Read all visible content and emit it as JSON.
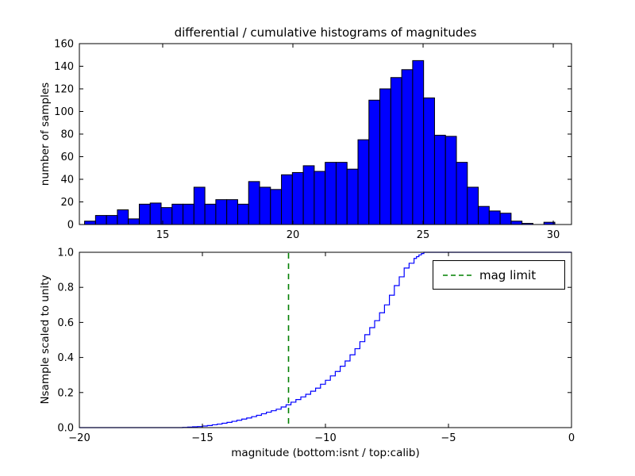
{
  "figure": {
    "background": "#ffffff"
  },
  "chart_data": [
    {
      "type": "bar",
      "title": "differential / cumulative histograms of magnitudes",
      "ylabel": "number of samples",
      "xlabel": "",
      "xlim": [
        11.8,
        30.7
      ],
      "ylim": [
        0,
        160
      ],
      "xtick_values": [
        15,
        20,
        25,
        30
      ],
      "xtick_labels": [
        "15",
        "20",
        "25",
        "30"
      ],
      "ytick_values": [
        0,
        20,
        40,
        60,
        80,
        100,
        120,
        140,
        160
      ],
      "ytick_labels": [
        "0",
        "20",
        "40",
        "60",
        "80",
        "100",
        "120",
        "140",
        "160"
      ],
      "grid": false,
      "bar_color": "#0000ff",
      "bar_edge_color": "#000000",
      "bins": {
        "start": 12.0,
        "width": 0.42
      },
      "counts": [
        3,
        8,
        8,
        13,
        5,
        18,
        19,
        15,
        18,
        18,
        33,
        18,
        22,
        22,
        18,
        38,
        33,
        31,
        44,
        46,
        52,
        47,
        55,
        55,
        49,
        75,
        110,
        120,
        130,
        137,
        145,
        112,
        79,
        78,
        55,
        33,
        16,
        12,
        10,
        3,
        1,
        0,
        2
      ]
    },
    {
      "type": "line",
      "line_style": "step",
      "ylabel": "Nsample scaled to unity",
      "xlabel": "magnitude (bottom:isnt / top:calib)",
      "xlim": [
        -20,
        0
      ],
      "ylim": [
        0.0,
        1.0
      ],
      "xtick_values": [
        -20,
        -15,
        -10,
        -5,
        0
      ],
      "xtick_labels": [
        "−20",
        "−15",
        "−10",
        "−5",
        "0"
      ],
      "ytick_values": [
        0.0,
        0.2,
        0.4,
        0.6,
        0.8,
        1.0
      ],
      "ytick_labels": [
        "0.0",
        "0.2",
        "0.4",
        "0.6",
        "0.8",
        "1.0"
      ],
      "grid": false,
      "line_color": "#0000ff",
      "step_points": [
        [
          -20.0,
          0.0
        ],
        [
          -16.0,
          0.0
        ],
        [
          -15.6,
          0.003
        ],
        [
          -15.2,
          0.006
        ],
        [
          -14.8,
          0.012
        ],
        [
          -14.4,
          0.02
        ],
        [
          -14.0,
          0.03
        ],
        [
          -13.6,
          0.042
        ],
        [
          -13.2,
          0.055
        ],
        [
          -12.8,
          0.07
        ],
        [
          -12.4,
          0.088
        ],
        [
          -12.0,
          0.105
        ],
        [
          -11.6,
          0.13
        ],
        [
          -11.2,
          0.16
        ],
        [
          -10.8,
          0.19
        ],
        [
          -10.4,
          0.225
        ],
        [
          -10.0,
          0.27
        ],
        [
          -9.6,
          0.32
        ],
        [
          -9.2,
          0.38
        ],
        [
          -8.8,
          0.45
        ],
        [
          -8.4,
          0.53
        ],
        [
          -8.0,
          0.61
        ],
        [
          -7.6,
          0.7
        ],
        [
          -7.2,
          0.81
        ],
        [
          -6.8,
          0.91
        ],
        [
          -6.4,
          0.965
        ],
        [
          -6.2,
          0.985
        ],
        [
          -6.0,
          1.0
        ],
        [
          0.0,
          1.0
        ]
      ],
      "vline": {
        "x": -11.5,
        "color": "#008000",
        "style": "dashed"
      },
      "legend_label": "mag limit",
      "legend_position": "upper right"
    }
  ]
}
